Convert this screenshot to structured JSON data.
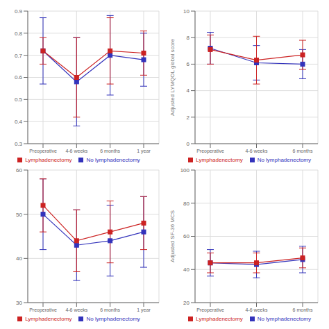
{
  "chart_data": [
    {
      "type": "line",
      "categories": [
        "Preoperative",
        "4-6 weeks",
        "6 months",
        "1 year"
      ],
      "series": [
        {
          "name": "No lymphadenectomy",
          "color": "#3333bb",
          "values": [
            0.72,
            0.58,
            0.7,
            0.68
          ],
          "error": [
            0.15,
            0.2,
            0.18,
            0.12
          ]
        },
        {
          "name": "Lymphadenectomy",
          "color": "#cc2222",
          "values": [
            0.72,
            0.6,
            0.72,
            0.71
          ],
          "error": [
            0.06,
            0.18,
            0.15,
            0.1
          ]
        }
      ],
      "ylim": [
        0.3,
        0.9
      ],
      "yticks": [
        0.3,
        0.4,
        0.5,
        0.6,
        0.7,
        0.8,
        0.9
      ],
      "grid": true,
      "legend": "lower center",
      "marker": "square"
    },
    {
      "type": "line",
      "ylabel": "Adjusted LYMQOL global score",
      "categories": [
        "Preoperative",
        "4-6 weeks",
        "6 months"
      ],
      "series": [
        {
          "name": "No lymphadenectomy",
          "color": "#3333bb",
          "values": [
            7.2,
            6.1,
            6.0
          ],
          "error": [
            1.2,
            1.3,
            1.1
          ]
        },
        {
          "name": "Lymphadenectomy",
          "color": "#cc2222",
          "values": [
            7.1,
            6.3,
            6.7
          ],
          "error": [
            1.1,
            1.8,
            1.1
          ]
        }
      ],
      "ylim": [
        0,
        10
      ],
      "yticks": [
        0,
        2,
        4,
        6,
        8,
        10
      ],
      "grid": true,
      "legend": "lower right",
      "marker": "square"
    },
    {
      "type": "line",
      "categories": [
        "Preoperative",
        "4-6 weeks",
        "6 months",
        "1 year"
      ],
      "series": [
        {
          "name": "No lymphadenectomy",
          "color": "#3333bb",
          "values": [
            50,
            43,
            44,
            46
          ],
          "error": [
            8,
            8,
            8,
            8
          ]
        },
        {
          "name": "Lymphadenectomy",
          "color": "#cc2222",
          "values": [
            52,
            44,
            46,
            48
          ],
          "error": [
            6,
            7,
            7,
            6
          ]
        }
      ],
      "ylim": [
        30,
        60
      ],
      "yticks": [
        30,
        40,
        50,
        60
      ],
      "grid": true,
      "legend": "lower center",
      "marker": "square"
    },
    {
      "type": "line",
      "ylabel": "Adjusted SF-36 MCS",
      "categories": [
        "Preoperative",
        "4-6 weeks",
        "6 months"
      ],
      "series": [
        {
          "name": "No lymphadenectomy",
          "color": "#3333bb",
          "values": [
            44,
            43,
            46
          ],
          "error": [
            8,
            8,
            8
          ]
        },
        {
          "name": "Lymphadenectomy",
          "color": "#cc2222",
          "values": [
            44,
            44,
            47
          ],
          "error": [
            6,
            6,
            6
          ]
        }
      ],
      "ylim": [
        20,
        100
      ],
      "yticks": [
        20,
        40,
        60,
        80,
        100
      ],
      "grid": true,
      "legend": "lower right",
      "marker": "square"
    }
  ]
}
